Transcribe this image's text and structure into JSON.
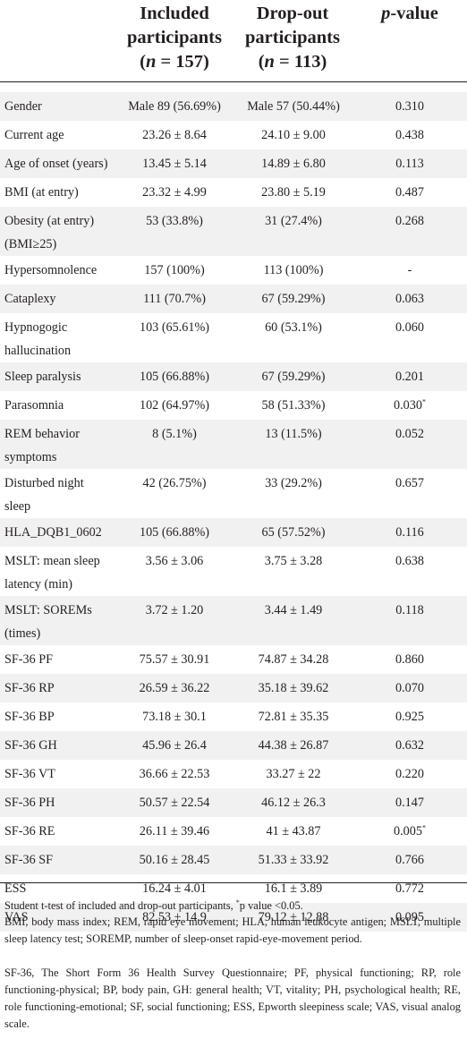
{
  "header": {
    "included": {
      "line1": "Included",
      "line2": "participants",
      "n": "157"
    },
    "dropout": {
      "line1": "Drop-out",
      "line2": "participants",
      "n": "113"
    },
    "n_symbol": "n",
    "p_symbol": "p",
    "p_suffix": "-value"
  },
  "rows": [
    {
      "label": [
        "Gender"
      ],
      "included": "Male 89 (56.69%)",
      "dropout": "Male 57 (50.44%)",
      "p": "0.310",
      "star": ""
    },
    {
      "label": [
        "Current age"
      ],
      "included": "23.26 ± 8.64",
      "dropout": "24.10 ± 9.00",
      "p": "0.438",
      "star": ""
    },
    {
      "label": [
        "Age of onset (years)"
      ],
      "included": "13.45 ± 5.14",
      "dropout": "14.89 ± 6.80",
      "p": "0.113",
      "star": ""
    },
    {
      "label": [
        "BMI (at entry)"
      ],
      "included": "23.32 ± 4.99",
      "dropout": "23.80 ± 5.19",
      "p": "0.487",
      "star": ""
    },
    {
      "label": [
        "Obesity (at entry)",
        "(BMI≥25)"
      ],
      "included": "53 (33.8%)",
      "dropout": "31 (27.4%)",
      "p": "0.268",
      "star": ""
    },
    {
      "label": [
        "Hypersomnolence"
      ],
      "included": "157 (100%)",
      "dropout": "113 (100%)",
      "p": "-",
      "star": ""
    },
    {
      "label": [
        "Cataplexy"
      ],
      "included": "111 (70.7%)",
      "dropout": "67 (59.29%)",
      "p": "0.063",
      "star": ""
    },
    {
      "label": [
        "Hypnogogic",
        "hallucination"
      ],
      "included": "103 (65.61%)",
      "dropout": "60 (53.1%)",
      "p": "0.060",
      "star": ""
    },
    {
      "label": [
        "Sleep paralysis"
      ],
      "included": "105 (66.88%)",
      "dropout": "67 (59.29%)",
      "p": "0.201",
      "star": ""
    },
    {
      "label": [
        "Parasomnia"
      ],
      "included": "102 (64.97%)",
      "dropout": "58 (51.33%)",
      "p": "0.030",
      "star": "*"
    },
    {
      "label": [
        "REM behavior",
        "symptoms"
      ],
      "included": "8 (5.1%)",
      "dropout": "13 (11.5%)",
      "p": "0.052",
      "star": ""
    },
    {
      "label": [
        "Disturbed night",
        "sleep"
      ],
      "included": "42 (26.75%)",
      "dropout": "33 (29.2%)",
      "p": "0.657",
      "star": ""
    },
    {
      "label": [
        "HLA_DQB1_0602"
      ],
      "included": "105 (66.88%)",
      "dropout": "65 (57.52%)",
      "p": "0.116",
      "star": ""
    },
    {
      "label": [
        "MSLT: mean sleep",
        "latency (min)"
      ],
      "included": "3.56 ± 3.06",
      "dropout": "3.75 ± 3.28",
      "p": "0.638",
      "star": ""
    },
    {
      "label": [
        "MSLT: SOREMs",
        "(times)"
      ],
      "included": "3.72 ± 1.20",
      "dropout": "3.44 ± 1.49",
      "p": "0.118",
      "star": ""
    },
    {
      "label": [
        "SF-36 PF"
      ],
      "included": "75.57 ± 30.91",
      "dropout": "74.87 ± 34.28",
      "p": "0.860",
      "star": ""
    },
    {
      "label": [
        "SF-36 RP"
      ],
      "included": "26.59 ± 36.22",
      "dropout": "35.18 ± 39.62",
      "p": "0.070",
      "star": ""
    },
    {
      "label": [
        "SF-36 BP"
      ],
      "included": "73.18 ± 30.1",
      "dropout": "72.81 ± 35.35",
      "p": "0.925",
      "star": ""
    },
    {
      "label": [
        "SF-36 GH"
      ],
      "included": "45.96 ± 26.4",
      "dropout": "44.38 ± 26.87",
      "p": "0.632",
      "star": ""
    },
    {
      "label": [
        "SF-36 VT"
      ],
      "included": "36.66 ± 22.53",
      "dropout": "33.27 ± 22",
      "p": "0.220",
      "star": ""
    },
    {
      "label": [
        "SF-36 PH"
      ],
      "included": "50.57 ± 22.54",
      "dropout": "46.12 ± 26.3",
      "p": "0.147",
      "star": ""
    },
    {
      "label": [
        "SF-36 RE"
      ],
      "included": "26.11 ± 39.46",
      "dropout": "41 ± 43.87",
      "p": "0.005",
      "star": "*"
    },
    {
      "label": [
        "SF-36 SF"
      ],
      "included": "50.16 ± 28.45",
      "dropout": "51.33 ± 33.92",
      "p": "0.766",
      "star": ""
    },
    {
      "label": [
        "ESS"
      ],
      "included": "16.24 ± 4.01",
      "dropout": "16.1 ± 3.89",
      "p": "0.772",
      "star": ""
    },
    {
      "label": [
        "VAS"
      ],
      "included": "82.53 ± 14.9",
      "dropout": "79.12 ± 12.88",
      "p": "0.095",
      "star": ""
    }
  ],
  "footnotes": {
    "stat_prefix": "Student t-test of included and drop-out participants, ",
    "stat_star": "*",
    "stat_suffix": "p value <0.05.",
    "abbr1": "BMI, body mass index; REM, rapid eye movement; HLA, human leukocyte antigen; MSLT, multiple sleep latency test; SOREMP, number of sleep-onset rapid-eye-movement period.",
    "abbr2": "SF-36, The Short Form 36 Health Survey Questionnaire; PF, physical functioning; RP, role functioning-physical; BP, body pain, GH: general health; VT, vitality; PH, psychological health; RE, role functioning-emotional; SF, social functioning; ESS, Epworth sleepiness scale; VAS, visual analog scale."
  }
}
